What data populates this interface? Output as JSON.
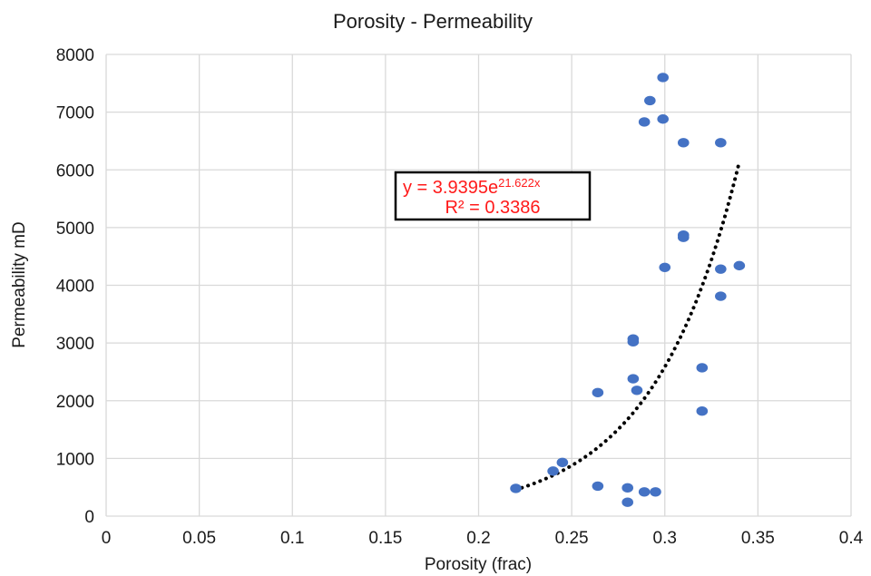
{
  "chart_data": {
    "type": "scatter",
    "title": "Porosity - Permeability",
    "xlabel": "Porosity (frac)",
    "ylabel": "Permeability mD",
    "xlim": [
      0,
      0.4
    ],
    "ylim": [
      0,
      8000
    ],
    "x_ticks": [
      0,
      0.05,
      0.1,
      0.15,
      0.2,
      0.25,
      0.3,
      0.35,
      0.4
    ],
    "x_tick_labels": [
      "0",
      "0.05",
      "0.1",
      "0.15",
      "0.2",
      "0.25",
      "0.3",
      "0.35",
      "0.4"
    ],
    "y_ticks": [
      0,
      1000,
      2000,
      3000,
      4000,
      5000,
      6000,
      7000,
      8000
    ],
    "y_tick_labels": [
      "0",
      "1000",
      "2000",
      "3000",
      "4000",
      "5000",
      "6000",
      "7000",
      "8000"
    ],
    "grid": true,
    "marker_color": "#4472c4",
    "series": [
      {
        "points": [
          [
            0.22,
            480
          ],
          [
            0.24,
            780
          ],
          [
            0.245,
            930
          ],
          [
            0.264,
            520
          ],
          [
            0.264,
            2140
          ],
          [
            0.28,
            490
          ],
          [
            0.28,
            240
          ],
          [
            0.283,
            3070
          ],
          [
            0.283,
            3020
          ],
          [
            0.283,
            2380
          ],
          [
            0.285,
            2180
          ],
          [
            0.289,
            420
          ],
          [
            0.289,
            6830
          ],
          [
            0.292,
            7200
          ],
          [
            0.295,
            420
          ],
          [
            0.299,
            7600
          ],
          [
            0.299,
            6880
          ],
          [
            0.3,
            4310
          ],
          [
            0.31,
            6470
          ],
          [
            0.31,
            4870
          ],
          [
            0.31,
            4830
          ],
          [
            0.32,
            2570
          ],
          [
            0.32,
            1820
          ],
          [
            0.33,
            6470
          ],
          [
            0.33,
            4280
          ],
          [
            0.33,
            3810
          ],
          [
            0.34,
            4340
          ]
        ]
      }
    ],
    "trendline": {
      "type": "exponential",
      "coefficient": 3.9395,
      "exponent": 21.622,
      "x_range": [
        0.22,
        0.34
      ],
      "color": "#000000",
      "style": "dotted",
      "equation_prefix": "y = 3.9395e",
      "equation_exponent": "21.622x",
      "r_squared_label": "R² = 0.3386",
      "label_color": "#ff1a1a"
    }
  }
}
